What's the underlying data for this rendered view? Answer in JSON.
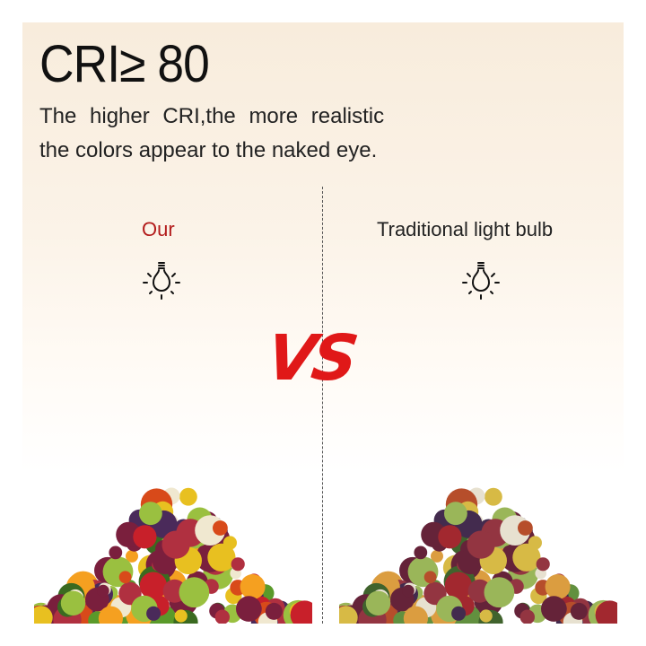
{
  "headline": "CRI≥ 80",
  "description": {
    "line1": "The higher CRI,the more realistic",
    "line2": "the colors appear to the naked eye."
  },
  "comparison": {
    "left_label": "Our",
    "right_label": "Traditional light bulb",
    "vs_label": "VS",
    "left_label_color": "#b31b1b",
    "vs_color": "#e01818"
  },
  "icons": {
    "left": "light-bulb-icon",
    "right": "light-bulb-icon"
  }
}
